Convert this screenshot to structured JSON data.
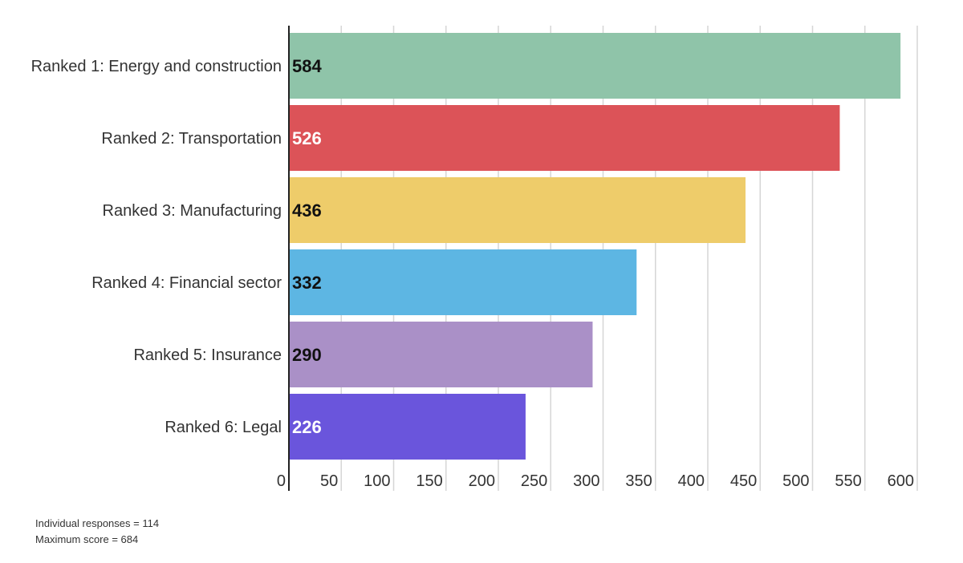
{
  "chart_data": {
    "type": "bar",
    "orientation": "horizontal",
    "categories": [
      "Ranked 1: Energy and construction",
      "Ranked 2: Transportation",
      "Ranked 3: Manufacturing",
      "Ranked 4: Financial sector",
      "Ranked 5: Insurance",
      "Ranked 6: Legal"
    ],
    "values": [
      584,
      526,
      436,
      332,
      290,
      226
    ],
    "colors": [
      "#8fc4a9",
      "#dc5358",
      "#eecc6a",
      "#5db6e3",
      "#aa90c7",
      "#6a55dc"
    ],
    "value_label_colors": [
      "#111111",
      "#ffffff",
      "#111111",
      "#111111",
      "#111111",
      "#ffffff"
    ],
    "xlim": [
      0,
      600
    ],
    "xticks": [
      0,
      50,
      100,
      150,
      200,
      250,
      300,
      350,
      400,
      450,
      500,
      550,
      600
    ],
    "grid": true,
    "title": "",
    "xlabel": "",
    "ylabel": ""
  },
  "notes": [
    "Individual responses = 114",
    "Maximum score = 684"
  ]
}
